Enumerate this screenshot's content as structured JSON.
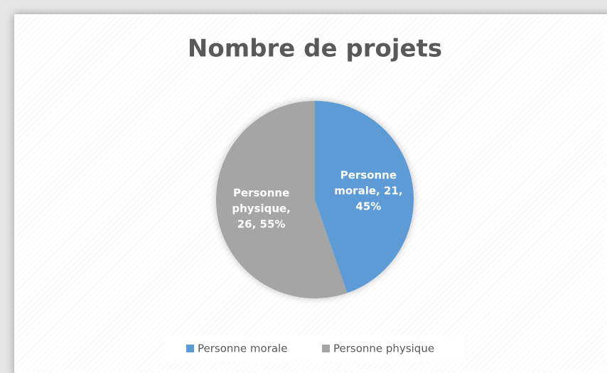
{
  "chart_data": {
    "type": "pie",
    "title": "Nombre de projets",
    "categories": [
      "Personne morale",
      "Personne physique"
    ],
    "values": [
      21,
      26
    ],
    "value_labels": [
      "Personne morale, 21, 45%",
      "Personne physique, 26, 55%"
    ],
    "colors": [
      "#5b9bd5",
      "#a5a5a5"
    ],
    "legend": "bottom"
  }
}
